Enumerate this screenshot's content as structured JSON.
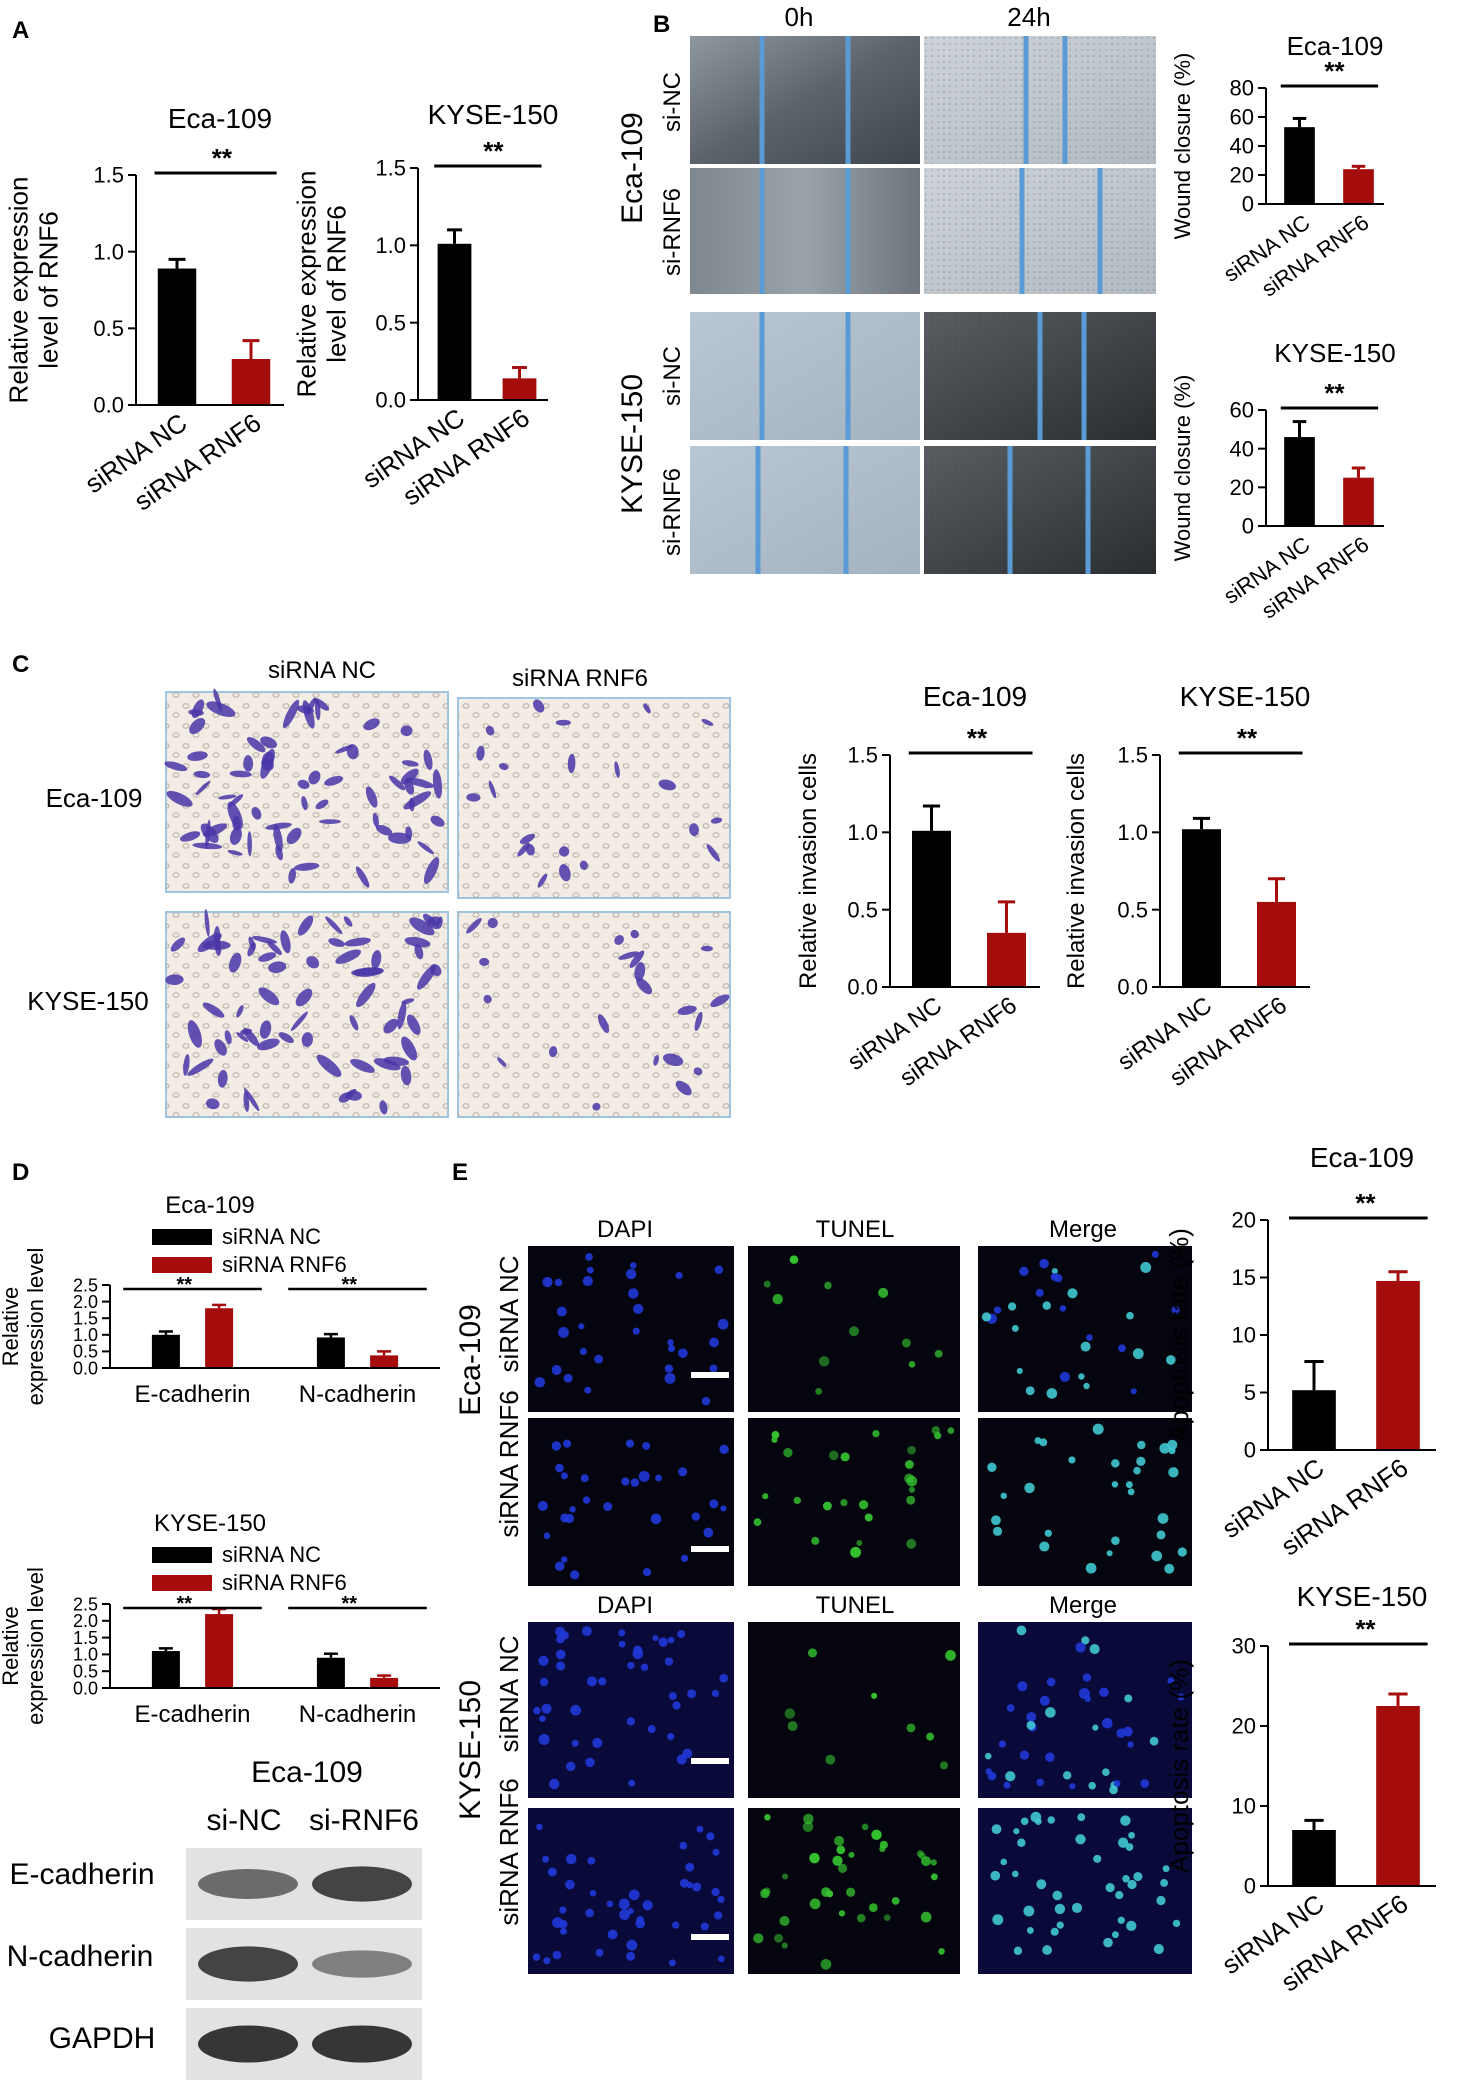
{
  "panel_labels": [
    "A",
    "B",
    "C",
    "D",
    "E"
  ],
  "colors": {
    "nc": "#000000",
    "rnf6": "#a50d0d",
    "band": "#2f2f2f",
    "blue_line": "#5b9bd5",
    "dapi": "#2038d8",
    "tunel": "#35c430",
    "merge": "#40c8d0"
  },
  "chart_data": [
    {
      "id": "A1",
      "type": "bar",
      "title": "Eca-109",
      "ylabel": "Relative expression\nlevel of RNF6",
      "categories": [
        "siRNA NC",
        "siRNA RNF6"
      ],
      "values": [
        0.89,
        0.3
      ],
      "errors": [
        0.06,
        0.12
      ],
      "ylim": [
        0,
        1.5
      ],
      "yticks": [
        "0.0",
        "0.5",
        "1.0",
        "1.5"
      ],
      "significance": "**"
    },
    {
      "id": "A2",
      "type": "bar",
      "title": "KYSE-150",
      "ylabel": "Relative expression\nlevel of RNF6",
      "categories": [
        "siRNA NC",
        "siRNA RNF6"
      ],
      "values": [
        1.01,
        0.14
      ],
      "errors": [
        0.09,
        0.07
      ],
      "ylim": [
        0,
        1.5
      ],
      "yticks": [
        "0.0",
        "0.5",
        "1.0",
        "1.5"
      ],
      "significance": "**"
    },
    {
      "id": "B1",
      "type": "bar",
      "title": "Eca-109",
      "ylabel": "Wound closure (%)",
      "categories": [
        "siRNA NC",
        "siRNA RNF6"
      ],
      "values": [
        53,
        24
      ],
      "errors": [
        6,
        2
      ],
      "ylim": [
        0,
        80
      ],
      "yticks": [
        "0",
        "20",
        "40",
        "60",
        "80"
      ],
      "significance": "**"
    },
    {
      "id": "B2",
      "type": "bar",
      "title": "KYSE-150",
      "ylabel": "Wound closure (%)",
      "categories": [
        "siRNA NC",
        "siRNA RNF6"
      ],
      "values": [
        46,
        25
      ],
      "errors": [
        8,
        5
      ],
      "ylim": [
        0,
        60
      ],
      "yticks": [
        "0",
        "20",
        "40",
        "60"
      ],
      "significance": "**"
    },
    {
      "id": "C1",
      "type": "bar",
      "title": "Eca-109",
      "ylabel": "Relative invasion cells",
      "categories": [
        "siRNA NC",
        "siRNA RNF6"
      ],
      "values": [
        1.01,
        0.35
      ],
      "errors": [
        0.16,
        0.2
      ],
      "ylim": [
        0,
        1.5
      ],
      "yticks": [
        "0.0",
        "0.5",
        "1.0",
        "1.5"
      ],
      "significance": "**"
    },
    {
      "id": "C2",
      "type": "bar",
      "title": "KYSE-150",
      "ylabel": "Relative invasion cells",
      "categories": [
        "siRNA NC",
        "siRNA RNF6"
      ],
      "values": [
        1.02,
        0.55
      ],
      "errors": [
        0.07,
        0.15
      ],
      "ylim": [
        0,
        1.5
      ],
      "yticks": [
        "0.0",
        "0.5",
        "1.0",
        "1.5"
      ],
      "significance": "**"
    },
    {
      "id": "D1",
      "type": "bar",
      "title": "Eca-109",
      "ylabel": "Relative\nexpression level",
      "categories": [
        "E-cadherin",
        "N-cadherin"
      ],
      "series": [
        {
          "name": "siRNA NC",
          "values": [
            1.0,
            0.92
          ],
          "errors": [
            0.1,
            0.1
          ]
        },
        {
          "name": "siRNA RNF6",
          "values": [
            1.8,
            0.38
          ],
          "errors": [
            0.1,
            0.12
          ]
        }
      ],
      "ylim": [
        0,
        2.5
      ],
      "yticks": [
        "0.0",
        "0.5",
        "1.0",
        "1.5",
        "2.0",
        "2.5"
      ],
      "significance": [
        "**",
        "**"
      ],
      "legend": "top"
    },
    {
      "id": "D2",
      "type": "bar",
      "title": "KYSE-150",
      "ylabel": "Relative\nexpression level",
      "categories": [
        "E-cadherin",
        "N-cadherin"
      ],
      "series": [
        {
          "name": "siRNA NC",
          "values": [
            1.1,
            0.9
          ],
          "errors": [
            0.08,
            0.12
          ]
        },
        {
          "name": "siRNA RNF6",
          "values": [
            2.2,
            0.3
          ],
          "errors": [
            0.15,
            0.07
          ]
        }
      ],
      "ylim": [
        0,
        2.5
      ],
      "yticks": [
        "0.0",
        "0.5",
        "1.0",
        "1.5",
        "2.0",
        "2.5"
      ],
      "significance": [
        "**",
        "**"
      ],
      "legend": "top"
    },
    {
      "id": "E1",
      "type": "bar",
      "title": "Eca-109",
      "ylabel": "Apoptosis rate (%)",
      "categories": [
        "siRNA NC",
        "siRNA RNF6"
      ],
      "values": [
        5.2,
        14.7
      ],
      "errors": [
        2.5,
        0.8
      ],
      "ylim": [
        0,
        20
      ],
      "yticks": [
        "0",
        "5",
        "10",
        "15",
        "20"
      ],
      "significance": "**"
    },
    {
      "id": "E2",
      "type": "bar",
      "title": "KYSE-150",
      "ylabel": "Apoptosis rate (%)",
      "categories": [
        "siRNA NC",
        "siRNA RNF6"
      ],
      "values": [
        7,
        22.5
      ],
      "errors": [
        1.2,
        1.5
      ],
      "ylim": [
        0,
        30
      ],
      "yticks": [
        "0",
        "10",
        "20",
        "30"
      ],
      "significance": "**"
    }
  ],
  "wound": {
    "times": [
      "0h",
      "24h"
    ],
    "cell_lines": [
      "Eca-109",
      "KYSE-150"
    ],
    "rows": [
      "si-NC",
      "si-RNF6"
    ]
  },
  "transwell": {
    "cols": [
      "siRNA NC",
      "siRNA RNF6"
    ],
    "rows": [
      "Eca-109",
      "KYSE-150"
    ]
  },
  "western": {
    "title": "Eca-109",
    "lanes": [
      "si-NC",
      "si-RNF6"
    ],
    "proteins": [
      "E-cadherin",
      "N-cadherin",
      "GAPDH"
    ],
    "intensity": [
      [
        0.55,
        0.85
      ],
      [
        0.85,
        0.4
      ],
      [
        0.95,
        0.95
      ]
    ]
  },
  "tunel": {
    "channels": [
      "DAPI",
      "TUNEL",
      "Merge"
    ],
    "cell_lines": [
      "Eca-109",
      "KYSE-150"
    ],
    "rows": [
      "siRNA NC",
      "siRNA RNF6"
    ],
    "tunel_density": [
      [
        0.25,
        0.9
      ],
      [
        0.15,
        0.85
      ]
    ]
  }
}
